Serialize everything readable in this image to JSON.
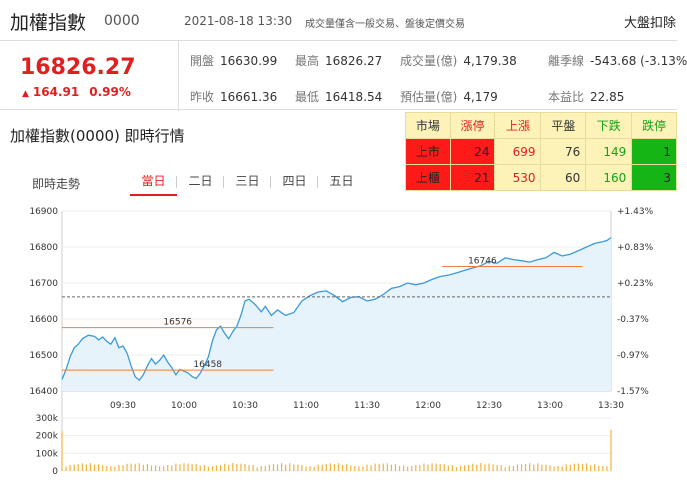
{
  "header": {
    "name": "加權指數",
    "code": "0000",
    "datetime": "2021-08-18 13:30",
    "note": "成交量僅含一般交易、盤後定價交易",
    "right_label": "大盤扣除"
  },
  "quote": {
    "price": "16826.27",
    "change_arrow": "▲",
    "change": "164.91",
    "change_pct": "0.99%",
    "cells": [
      {
        "label": "開盤",
        "value": "16630.99"
      },
      {
        "label": "最高",
        "value": "16826.27"
      },
      {
        "label": "成交量(億)",
        "value": "4,179.38"
      },
      {
        "label": "離季線",
        "value": "-543.68 (-3.13%"
      },
      {
        "label": "昨收",
        "value": "16661.36"
      },
      {
        "label": "最低",
        "value": "16418.54"
      },
      {
        "label": "預估量(億)",
        "value": "4,179"
      },
      {
        "label": "本益比",
        "value": "22.85"
      }
    ]
  },
  "section_title": "加權指數(0000) 即時行情",
  "subtitle": "即時走勢",
  "tabs": [
    "當日",
    "二日",
    "三日",
    "四日",
    "五日"
  ],
  "active_tab": 0,
  "breadth": {
    "headers": [
      "市場",
      "漲停",
      "上漲",
      "平盤",
      "下跌",
      "跌停"
    ],
    "rows": [
      {
        "market": "上市",
        "limit_up": "24",
        "up": "699",
        "flat": "76",
        "down": "149",
        "limit_down": "1"
      },
      {
        "market": "上櫃",
        "limit_up": "21",
        "up": "530",
        "flat": "60",
        "down": "160",
        "limit_down": "3"
      }
    ]
  },
  "colors": {
    "up": "#e02020",
    "down": "#16a016",
    "price_line": "#3a9ad9",
    "fill": "#e6f3fb",
    "volume": "#f2b33d",
    "annotation": "#e8823a"
  },
  "chart_data": {
    "type": "line",
    "prev_close": 16661.36,
    "ylim": [
      16400,
      16900
    ],
    "y_ticks": [
      "16900",
      "16800",
      "16700",
      "16600",
      "16500",
      "16400"
    ],
    "pct_ticks": [
      "+1.43%",
      "+0.83%",
      "+0.23%",
      "-0.37%",
      "-0.97%",
      "-1.57%"
    ],
    "x_labels": [
      "09:30",
      "10:00",
      "10:30",
      "11:00",
      "11:30",
      "12:00",
      "12:30",
      "13:00",
      "13:30"
    ],
    "x_label_minutes": [
      30,
      60,
      90,
      120,
      150,
      180,
      210,
      240,
      270
    ],
    "series": [
      {
        "minutes": [
          0,
          2,
          4,
          6,
          8,
          10,
          13,
          16,
          18,
          20,
          22,
          24,
          26,
          28,
          30,
          32,
          34,
          36,
          38,
          40,
          42,
          44,
          46,
          48,
          50,
          52,
          54,
          56,
          58,
          60,
          62,
          64,
          66,
          68,
          70,
          72,
          74,
          76,
          78,
          80,
          82,
          84,
          86,
          88,
          90,
          92,
          95,
          98,
          100,
          103,
          106,
          110,
          114,
          118,
          122,
          126,
          130,
          134,
          138,
          142,
          146,
          150,
          154,
          158,
          162,
          166,
          170,
          174,
          178,
          182,
          186,
          190,
          194,
          198,
          202,
          206,
          210,
          214,
          218,
          222,
          226,
          230,
          234,
          238,
          242,
          246,
          250,
          254,
          258,
          262,
          266,
          268,
          270
        ],
        "prices": [
          16432,
          16460,
          16495,
          16520,
          16530,
          16545,
          16555,
          16552,
          16542,
          16550,
          16538,
          16530,
          16548,
          16520,
          16525,
          16505,
          16470,
          16440,
          16430,
          16445,
          16470,
          16490,
          16475,
          16485,
          16500,
          16480,
          16465,
          16445,
          16460,
          16455,
          16450,
          16440,
          16435,
          16450,
          16470,
          16495,
          16540,
          16570,
          16580,
          16560,
          16545,
          16565,
          16580,
          16610,
          16650,
          16655,
          16640,
          16620,
          16635,
          16610,
          16625,
          16610,
          16618,
          16650,
          16665,
          16675,
          16678,
          16665,
          16648,
          16660,
          16662,
          16650,
          16655,
          16668,
          16685,
          16690,
          16700,
          16695,
          16700,
          16710,
          16718,
          16722,
          16728,
          16735,
          16742,
          16748,
          16760,
          16755,
          16770,
          16765,
          16762,
          16758,
          16765,
          16770,
          16785,
          16775,
          16780,
          16790,
          16800,
          16810,
          16815,
          16818,
          16826
        ]
      }
    ],
    "volume": {
      "ylim": [
        0,
        300000
      ],
      "y_ticks": [
        "300k",
        "200k",
        "100k",
        "0"
      ]
    },
    "annotations": [
      {
        "label": "16576",
        "value": 16576,
        "from_minute": -2,
        "to_minute": 104
      },
      {
        "label": "16458",
        "value": 16458,
        "from_minute": -2,
        "to_minute": 104
      },
      {
        "label": "16746",
        "value": 16746,
        "from_minute": 187,
        "to_minute": 256
      }
    ]
  }
}
